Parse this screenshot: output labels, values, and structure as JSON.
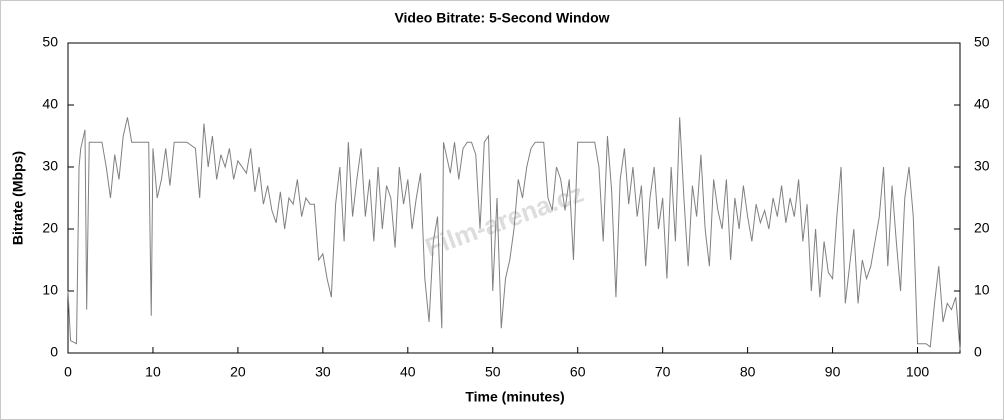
{
  "chart_data": {
    "type": "line",
    "title": "Video Bitrate: 5-Second Window",
    "x_label": "Time (minutes)",
    "y_label": "Bitrate (Mbps)",
    "watermark": "Film-arena.cz",
    "xlim": [
      0,
      105
    ],
    "xticks": [
      0,
      10,
      20,
      30,
      40,
      50,
      60,
      70,
      80,
      90,
      100
    ],
    "ylim": [
      0,
      50
    ],
    "yticks": [
      0,
      10,
      20,
      30,
      40,
      50
    ],
    "y2lim": [
      0,
      50
    ],
    "y2ticks": [
      0,
      10,
      20,
      30,
      40,
      50
    ],
    "grid": false,
    "x": [
      0,
      0.3,
      1,
      1.3,
      1.5,
      2,
      2.2,
      2.5,
      3,
      4,
      4.5,
      5,
      5.5,
      6,
      6.5,
      7,
      7.5,
      8,
      9,
      9.5,
      9.8,
      10,
      10.5,
      11,
      11.5,
      12,
      12.5,
      13,
      14,
      15,
      15.5,
      16,
      16.5,
      17,
      17.5,
      18,
      18.5,
      19,
      19.5,
      20,
      21,
      21.5,
      22,
      22.5,
      23,
      23.5,
      24,
      24.5,
      25,
      25.5,
      26,
      26.5,
      27,
      27.5,
      28,
      28.5,
      29,
      29.5,
      30,
      30.5,
      31,
      31.5,
      32,
      32.5,
      33,
      33.5,
      34,
      34.5,
      35,
      35.5,
      36,
      36.5,
      37,
      37.5,
      38,
      38.5,
      39,
      39.5,
      40,
      40.5,
      41,
      41.5,
      42,
      42.5,
      43,
      43.5,
      44,
      44.2,
      45,
      45.5,
      46,
      46.5,
      47,
      47.5,
      48,
      48.5,
      49,
      49.5,
      50,
      50.5,
      51,
      51.5,
      52,
      52.5,
      53,
      53.5,
      54,
      54.5,
      55,
      56,
      56.5,
      57,
      57.5,
      58,
      58.5,
      59,
      59.5,
      60,
      61,
      62,
      62.5,
      63,
      63.5,
      64,
      64.5,
      65,
      65.5,
      66,
      66.5,
      67,
      67.5,
      68,
      68.5,
      69,
      69.5,
      70,
      70.5,
      71,
      71.5,
      72,
      72.5,
      73,
      73.5,
      74,
      74.5,
      75,
      75.5,
      76,
      76.5,
      77,
      77.5,
      78,
      78.5,
      79,
      79.5,
      80,
      80.5,
      81,
      81.5,
      82,
      82.5,
      83,
      83.5,
      84,
      84.5,
      85,
      85.5,
      86,
      86.5,
      87,
      87.5,
      88,
      88.5,
      89,
      89.5,
      90,
      90.5,
      91,
      91.5,
      92,
      92.5,
      93,
      93.5,
      94,
      94.5,
      95,
      95.5,
      96,
      96.5,
      97,
      97.5,
      98,
      98.5,
      99,
      99.5,
      100,
      101,
      101.5,
      102,
      102.5,
      103,
      103.5,
      104,
      104.5,
      105
    ],
    "series": [
      {
        "name": "Video Bitrate",
        "color": "#808080",
        "values": [
          10,
          2,
          1.5,
          30,
          33,
          36,
          7,
          34,
          34,
          34,
          30,
          25,
          32,
          28,
          35,
          38,
          34,
          34,
          34,
          34,
          6,
          33,
          25,
          28,
          33,
          27,
          34,
          34,
          34,
          33,
          25,
          37,
          30,
          35,
          28,
          32,
          30,
          33,
          28,
          31,
          29,
          33,
          26,
          30,
          24,
          27,
          23,
          21,
          26,
          20,
          25,
          24,
          28,
          22,
          25,
          24,
          24,
          15,
          16,
          12,
          9,
          24,
          30,
          18,
          34,
          22,
          28,
          33,
          22,
          28,
          18,
          30,
          20,
          27,
          25,
          17,
          30,
          24,
          28,
          20,
          25,
          29,
          12,
          5,
          18,
          22,
          4,
          34,
          29,
          34,
          28,
          33,
          34,
          34,
          32,
          20,
          34,
          35,
          10,
          25,
          4,
          12,
          15,
          20,
          28,
          25,
          30,
          33,
          34,
          34,
          25,
          23,
          30,
          28,
          23,
          28,
          15,
          34,
          34,
          34,
          30,
          18,
          35,
          26,
          9,
          28,
          33,
          24,
          30,
          22,
          27,
          14,
          25,
          30,
          20,
          25,
          12,
          30,
          18,
          38,
          25,
          14,
          27,
          22,
          32,
          20,
          14,
          28,
          23,
          20,
          28,
          15,
          25,
          20,
          27,
          22,
          18,
          24,
          21,
          23,
          20,
          25,
          22,
          27,
          21,
          25,
          22,
          28,
          18,
          24,
          10,
          20,
          9,
          18,
          13,
          12,
          22,
          30,
          8,
          14,
          20,
          8,
          15,
          12,
          14,
          18,
          22,
          30,
          14,
          27,
          18,
          10,
          25,
          30,
          22,
          1.5,
          1.5,
          1,
          8,
          14,
          5,
          8,
          7,
          9,
          0.5
        ]
      }
    ]
  }
}
